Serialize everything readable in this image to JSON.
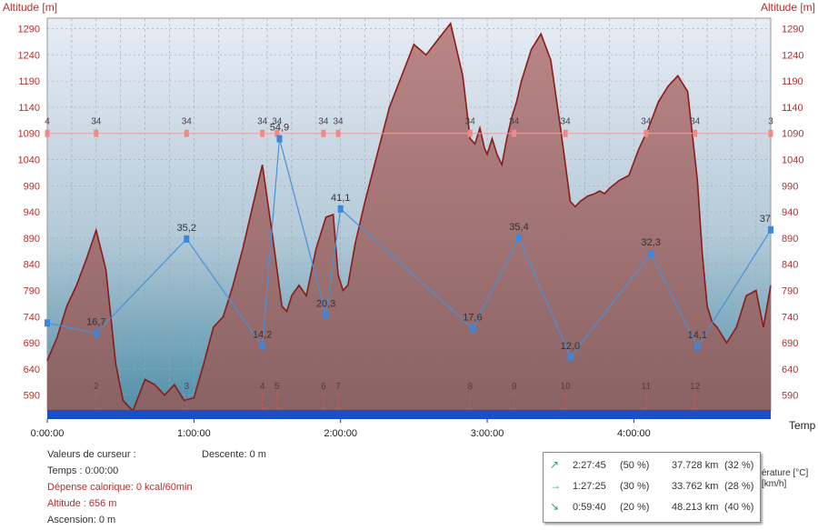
{
  "axes": {
    "left_title": "Altitude  [m]",
    "right_title": "Altitude  [m]",
    "x_title": "Temp"
  },
  "info": {
    "heading": "Valeurs de curseur :",
    "time": "Temps : 0:00:00",
    "calories": "Dépense calorique: 0 kcal/60min",
    "altitude": "Altitude : 656 m",
    "ascent": "Ascension: 0 m",
    "descent": "Descente: 0 m"
  },
  "stats": [
    {
      "icon": "arrow-up-right-icon",
      "glyph": "↗",
      "time": "2:27:45",
      "time_pct": "(50 %)",
      "dist": "37.728 km",
      "dist_pct": "(32 %)"
    },
    {
      "icon": "arrow-right-icon",
      "glyph": "→",
      "time": "1:27:25",
      "time_pct": "(30 %)",
      "dist": "33.762 km",
      "dist_pct": "(28 %)"
    },
    {
      "icon": "arrow-down-right-icon",
      "glyph": "↘",
      "time": "0:59:40",
      "time_pct": "(20 %)",
      "dist": "48.213 km",
      "dist_pct": "(40 %)"
    }
  ],
  "legend_fragments": {
    "temperature": "érature [°C]",
    "speed": "[km/h]"
  },
  "chart_data": {
    "type": "area",
    "x_unit": "minutes",
    "xlim": [
      0,
      296
    ],
    "ylim": [
      560,
      1310
    ],
    "x_ticks": [
      {
        "value": 0,
        "label": "0:00:00"
      },
      {
        "value": 60,
        "label": "1:00:00"
      },
      {
        "value": 120,
        "label": "2:00:00"
      },
      {
        "value": 180,
        "label": "3:00:00"
      },
      {
        "value": 240,
        "label": "4:00:00"
      }
    ],
    "y_ticks": [
      590,
      640,
      690,
      740,
      790,
      840,
      890,
      940,
      990,
      1040,
      1090,
      1140,
      1190,
      1240,
      1290
    ],
    "colors": {
      "altitude_fill": "#a06a6a",
      "altitude_line": "#8b1a1a",
      "speed_line": "#4a90d9",
      "temperature_line": "#f2a0a0",
      "time_bar": "#1a4fc8"
    },
    "series": [
      {
        "name": "Altitude",
        "x": [
          0,
          4,
          8,
          12,
          16,
          20,
          24,
          28,
          31,
          35,
          40,
          44,
          48,
          52,
          56,
          60,
          64,
          68,
          72,
          76,
          80,
          84,
          88,
          92,
          96,
          98,
          100,
          103,
          106,
          110,
          114,
          117,
          119,
          121,
          123,
          126,
          130,
          135,
          140,
          145,
          150,
          155,
          160,
          165,
          170,
          173,
          175,
          177,
          179,
          180,
          182,
          184,
          186,
          188,
          190,
          192,
          194,
          196,
          198,
          202,
          206,
          210,
          214,
          216,
          218,
          221,
          224,
          226,
          228,
          230,
          234,
          238,
          242,
          246,
          250,
          254,
          258,
          262,
          266,
          268,
          270,
          272,
          274,
          278,
          282,
          286,
          290,
          293,
          296
        ],
        "y": [
          656,
          700,
          760,
          800,
          850,
          905,
          830,
          650,
          580,
          560,
          620,
          610,
          590,
          610,
          580,
          585,
          650,
          720,
          740,
          800,
          870,
          950,
          1030,
          900,
          760,
          750,
          780,
          800,
          780,
          870,
          930,
          935,
          820,
          790,
          800,
          880,
          960,
          1050,
          1140,
          1200,
          1260,
          1240,
          1270,
          1300,
          1200,
          1080,
          1070,
          1100,
          1060,
          1050,
          1080,
          1050,
          1030,
          1080,
          1120,
          1150,
          1190,
          1220,
          1250,
          1280,
          1230,
          1100,
          960,
          950,
          960,
          970,
          975,
          980,
          975,
          985,
          1000,
          1010,
          1060,
          1100,
          1150,
          1180,
          1200,
          1170,
          1000,
          860,
          760,
          730,
          720,
          690,
          720,
          780,
          790,
          720,
          800
        ]
      },
      {
        "name": "Speed [km/h]",
        "x": [
          0,
          20,
          57,
          88,
          95,
          114,
          120,
          174,
          193,
          214,
          247,
          266,
          296
        ],
        "y": [
          18.7,
          16.7,
          35.2,
          14.2,
          54.9,
          20.3,
          41.1,
          17.6,
          35.4,
          12.0,
          32.3,
          14.1,
          37
        ],
        "labels": [
          "",
          "16,7",
          "35,2",
          "14,2",
          "54,9",
          "20,3",
          "41,1",
          "17,6",
          "35,4",
          "12,0",
          "32,3",
          "14,1",
          "37"
        ]
      },
      {
        "name": "Temperature [°C]",
        "x": [
          0,
          20,
          57,
          88,
          94,
          113,
          119,
          173,
          191,
          212,
          245,
          265,
          296
        ],
        "y": [
          34,
          34,
          34,
          34,
          34,
          34,
          34,
          34,
          34,
          34,
          34,
          34,
          34
        ],
        "labels": [
          "4",
          "34",
          "34",
          "34",
          "34",
          "34",
          "34",
          "34",
          "34",
          "34",
          "34",
          "34",
          "3"
        ]
      }
    ],
    "markers": {
      "labels": [
        "2",
        "3",
        "4",
        "5",
        "6",
        "7",
        "8",
        "9",
        "10",
        "11",
        "12"
      ],
      "x": [
        20,
        57,
        88,
        94,
        113,
        119,
        173,
        191,
        212,
        245,
        265
      ]
    }
  }
}
